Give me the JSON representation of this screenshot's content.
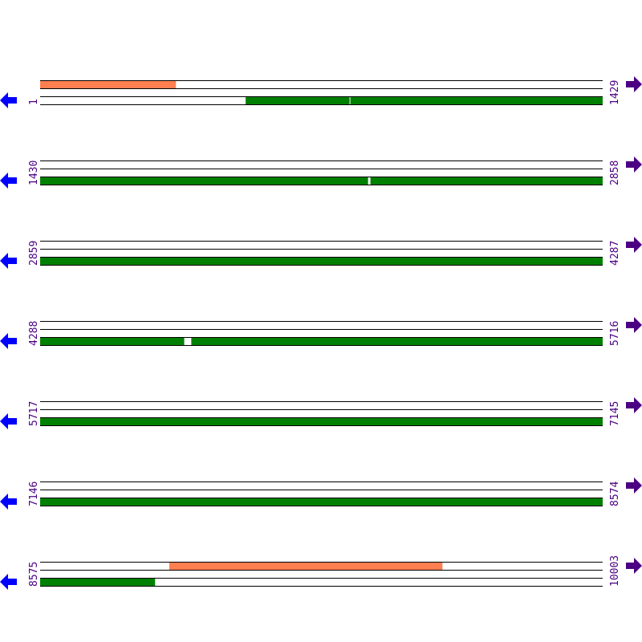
{
  "colors": {
    "line": "#000000",
    "orf_top": "#ff7f50",
    "orf_bottom": "#008000",
    "left_arrow": "#0000ff",
    "right_arrow": "#4b0082",
    "label": "#4b0082"
  },
  "icons": {
    "left": "arrow-left-icon",
    "right": "arrow-right-icon"
  },
  "rows": [
    {
      "start_label": "1",
      "end_label": "1429",
      "start": 1,
      "end": 1429,
      "top": [
        [
          1,
          345
        ]
      ],
      "bottom": [
        [
          523,
          786
        ],
        [
          789,
          1429
        ]
      ]
    },
    {
      "start_label": "1430",
      "end_label": "2858",
      "start": 1430,
      "end": 2858,
      "top": [],
      "bottom": [
        [
          1430,
          2262
        ],
        [
          2269,
          2858
        ]
      ]
    },
    {
      "start_label": "2859",
      "end_label": "4287",
      "start": 2859,
      "end": 4287,
      "top": [],
      "bottom": [
        [
          2859,
          4287
        ]
      ]
    },
    {
      "start_label": "4288",
      "end_label": "5716",
      "start": 4288,
      "end": 5716,
      "top": [],
      "bottom": [
        [
          4288,
          4653
        ],
        [
          4672,
          5716
        ]
      ]
    },
    {
      "start_label": "5717",
      "end_label": "7145",
      "start": 5717,
      "end": 7145,
      "top": [],
      "bottom": [
        [
          5717,
          7145
        ]
      ]
    },
    {
      "start_label": "7146",
      "end_label": "8574",
      "start": 7146,
      "end": 8574,
      "top": [],
      "bottom": [
        [
          7146,
          8574
        ]
      ]
    },
    {
      "start_label": "8575",
      "end_label": "10003",
      "start": 8575,
      "end": 10003,
      "top": [
        [
          8903,
          9596
        ]
      ],
      "bottom": [
        [
          8575,
          8866
        ]
      ]
    }
  ]
}
